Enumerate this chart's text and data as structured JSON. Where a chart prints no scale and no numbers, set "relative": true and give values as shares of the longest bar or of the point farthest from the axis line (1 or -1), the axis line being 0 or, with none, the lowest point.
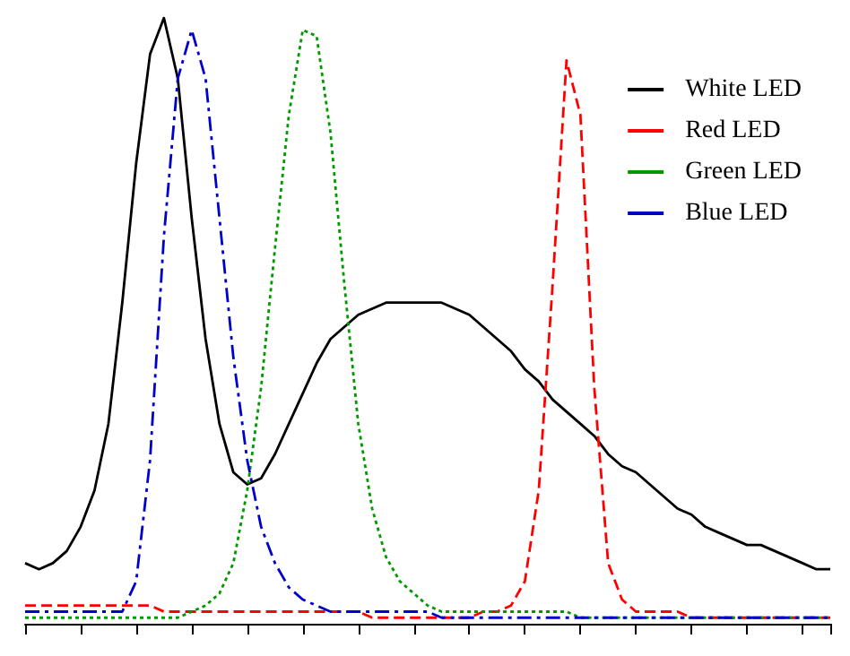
{
  "chart_data": {
    "type": "line",
    "relative": true,
    "legend": "top right",
    "grid": false,
    "categories": [
      null,
      null,
      null,
      null,
      null,
      null,
      null,
      null,
      null,
      null,
      null,
      null,
      null,
      null,
      null,
      null,
      null,
      null,
      null,
      null,
      null,
      null,
      null,
      null,
      null,
      null,
      null,
      null,
      null,
      null,
      null,
      null,
      null,
      null,
      null,
      null,
      null,
      null,
      null,
      null,
      null,
      null,
      null,
      null,
      null,
      null,
      null,
      null,
      null,
      null,
      null,
      null,
      null,
      null,
      null,
      null,
      null,
      null,
      null
    ],
    "series": [
      {
        "name": "White LED",
        "color": "#000000",
        "line_style": "solid",
        "values": [
          0.1,
          0.09,
          0.1,
          0.12,
          0.16,
          0.22,
          0.33,
          0.53,
          0.76,
          0.94,
          1.0,
          0.9,
          0.67,
          0.47,
          0.33,
          0.25,
          0.23,
          0.24,
          0.28,
          0.33,
          0.38,
          0.43,
          0.47,
          0.49,
          0.51,
          0.52,
          0.53,
          0.53,
          0.53,
          0.53,
          0.53,
          0.52,
          0.51,
          0.49,
          0.47,
          0.45,
          0.42,
          0.4,
          0.37,
          0.35,
          0.33,
          0.31,
          0.28,
          0.26,
          0.25,
          0.23,
          0.21,
          0.19,
          0.18,
          0.16,
          0.15,
          0.14,
          0.13,
          0.13,
          0.12,
          0.11,
          0.1,
          0.09,
          0.09
        ]
      },
      {
        "name": "Red LED",
        "color": "#ff0000",
        "line_style": "dashed",
        "values": [
          0.03,
          0.03,
          0.03,
          0.03,
          0.03,
          0.03,
          0.03,
          0.03,
          0.03,
          0.03,
          0.02,
          0.02,
          0.02,
          0.02,
          0.02,
          0.02,
          0.02,
          0.02,
          0.02,
          0.02,
          0.02,
          0.02,
          0.02,
          0.02,
          0.02,
          0.01,
          0.01,
          0.01,
          0.01,
          0.01,
          0.01,
          0.01,
          0.01,
          0.02,
          0.02,
          0.03,
          0.07,
          0.22,
          0.56,
          0.93,
          0.84,
          0.39,
          0.1,
          0.04,
          0.02,
          0.02,
          0.02,
          0.02,
          0.01,
          0.01,
          0.01,
          0.01,
          0.01,
          0.01,
          0.01,
          0.01,
          0.01,
          0.01,
          0.01
        ]
      },
      {
        "name": "Green LED",
        "color": "#009900",
        "line_style": "dotted",
        "values": [
          0.01,
          0.01,
          0.01,
          0.01,
          0.01,
          0.01,
          0.01,
          0.01,
          0.01,
          0.01,
          0.01,
          0.01,
          0.02,
          0.03,
          0.05,
          0.1,
          0.22,
          0.39,
          0.62,
          0.84,
          0.98,
          0.97,
          0.81,
          0.56,
          0.33,
          0.19,
          0.11,
          0.07,
          0.05,
          0.03,
          0.02,
          0.02,
          0.02,
          0.02,
          0.02,
          0.02,
          0.02,
          0.02,
          0.02,
          0.02,
          0.01,
          0.01,
          0.01,
          0.01,
          0.01,
          0.01,
          0.01,
          0.01,
          0.01,
          0.01,
          0.01,
          0.01,
          0.01,
          0.01,
          0.01,
          0.01,
          0.01,
          0.01,
          0.01
        ]
      },
      {
        "name": "Blue LED",
        "color": "#0000cc",
        "line_style": "dashdot",
        "values": [
          0.02,
          0.02,
          0.02,
          0.02,
          0.02,
          0.02,
          0.02,
          0.02,
          0.07,
          0.27,
          0.64,
          0.9,
          0.98,
          0.9,
          0.67,
          0.44,
          0.27,
          0.16,
          0.1,
          0.06,
          0.04,
          0.03,
          0.02,
          0.02,
          0.02,
          0.02,
          0.02,
          0.02,
          0.02,
          0.02,
          0.01,
          0.01,
          0.01,
          0.01,
          0.01,
          0.01,
          0.01,
          0.01,
          0.01,
          0.01,
          0.01,
          0.01,
          0.01,
          0.01,
          0.01,
          0.01,
          0.01,
          0.01,
          0.01,
          0.01,
          0.01,
          0.01,
          0.01,
          0.01,
          0.01,
          0.01,
          0.01,
          0.01,
          0.01
        ]
      }
    ]
  }
}
